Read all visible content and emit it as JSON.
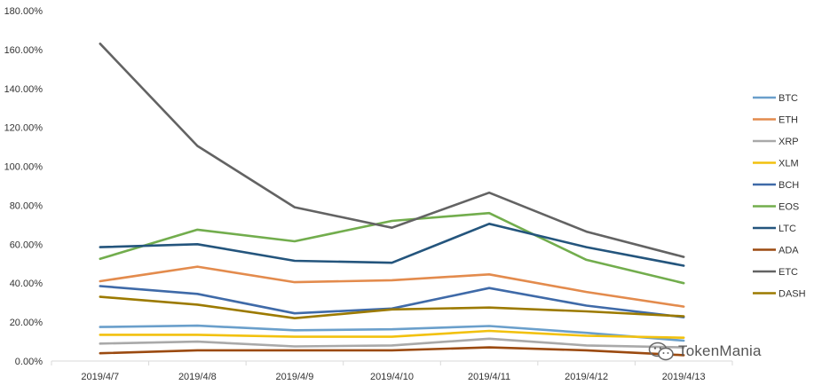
{
  "chart_data": {
    "type": "line",
    "categories": [
      "2019/4/7",
      "2019/4/8",
      "2019/4/9",
      "2019/4/10",
      "2019/4/11",
      "2019/4/12",
      "2019/4/13"
    ],
    "ylim": [
      0,
      180
    ],
    "yticks": [
      "0.00%",
      "20.00%",
      "40.00%",
      "60.00%",
      "80.00%",
      "100.00%",
      "120.00%",
      "140.00%",
      "160.00%",
      "180.00%"
    ],
    "grid": false,
    "legend_position": "right",
    "series": [
      {
        "name": "BTC",
        "color": "#6A9FCB",
        "values": [
          17.5,
          18.2,
          15.8,
          16.3,
          18.0,
          14.5,
          10.5
        ]
      },
      {
        "name": "ETH",
        "color": "#E38B4D",
        "values": [
          41.0,
          48.5,
          40.5,
          41.5,
          44.5,
          35.5,
          28.0
        ]
      },
      {
        "name": "XRP",
        "color": "#A9A9A9",
        "values": [
          9.0,
          10.0,
          7.5,
          8.0,
          11.5,
          8.0,
          7.0
        ]
      },
      {
        "name": "XLM",
        "color": "#F2C10E",
        "values": [
          13.5,
          13.5,
          12.5,
          12.5,
          15.5,
          13.0,
          12.0
        ]
      },
      {
        "name": "BCH",
        "color": "#3F6AA8",
        "values": [
          38.5,
          34.5,
          24.5,
          27.0,
          37.5,
          28.5,
          22.5
        ]
      },
      {
        "name": "EOS",
        "color": "#72AD4D",
        "values": [
          52.5,
          67.5,
          61.5,
          72.0,
          76.0,
          52.0,
          40.0
        ]
      },
      {
        "name": "LTC",
        "color": "#24557D",
        "values": [
          58.5,
          60.0,
          51.5,
          50.5,
          70.5,
          58.5,
          49.0
        ]
      },
      {
        "name": "ADA",
        "color": "#9B4A10",
        "values": [
          4.0,
          5.5,
          5.5,
          5.5,
          7.0,
          5.5,
          3.0
        ]
      },
      {
        "name": "ETC",
        "color": "#636363",
        "values": [
          163.0,
          110.5,
          79.0,
          68.5,
          86.5,
          66.5,
          53.5
        ]
      },
      {
        "name": "DASH",
        "color": "#9C7A00",
        "values": [
          33.0,
          29.0,
          22.0,
          26.5,
          27.5,
          25.5,
          23.0
        ]
      }
    ]
  },
  "watermark": {
    "text": "TokenMania",
    "icon": "wechat-icon"
  }
}
